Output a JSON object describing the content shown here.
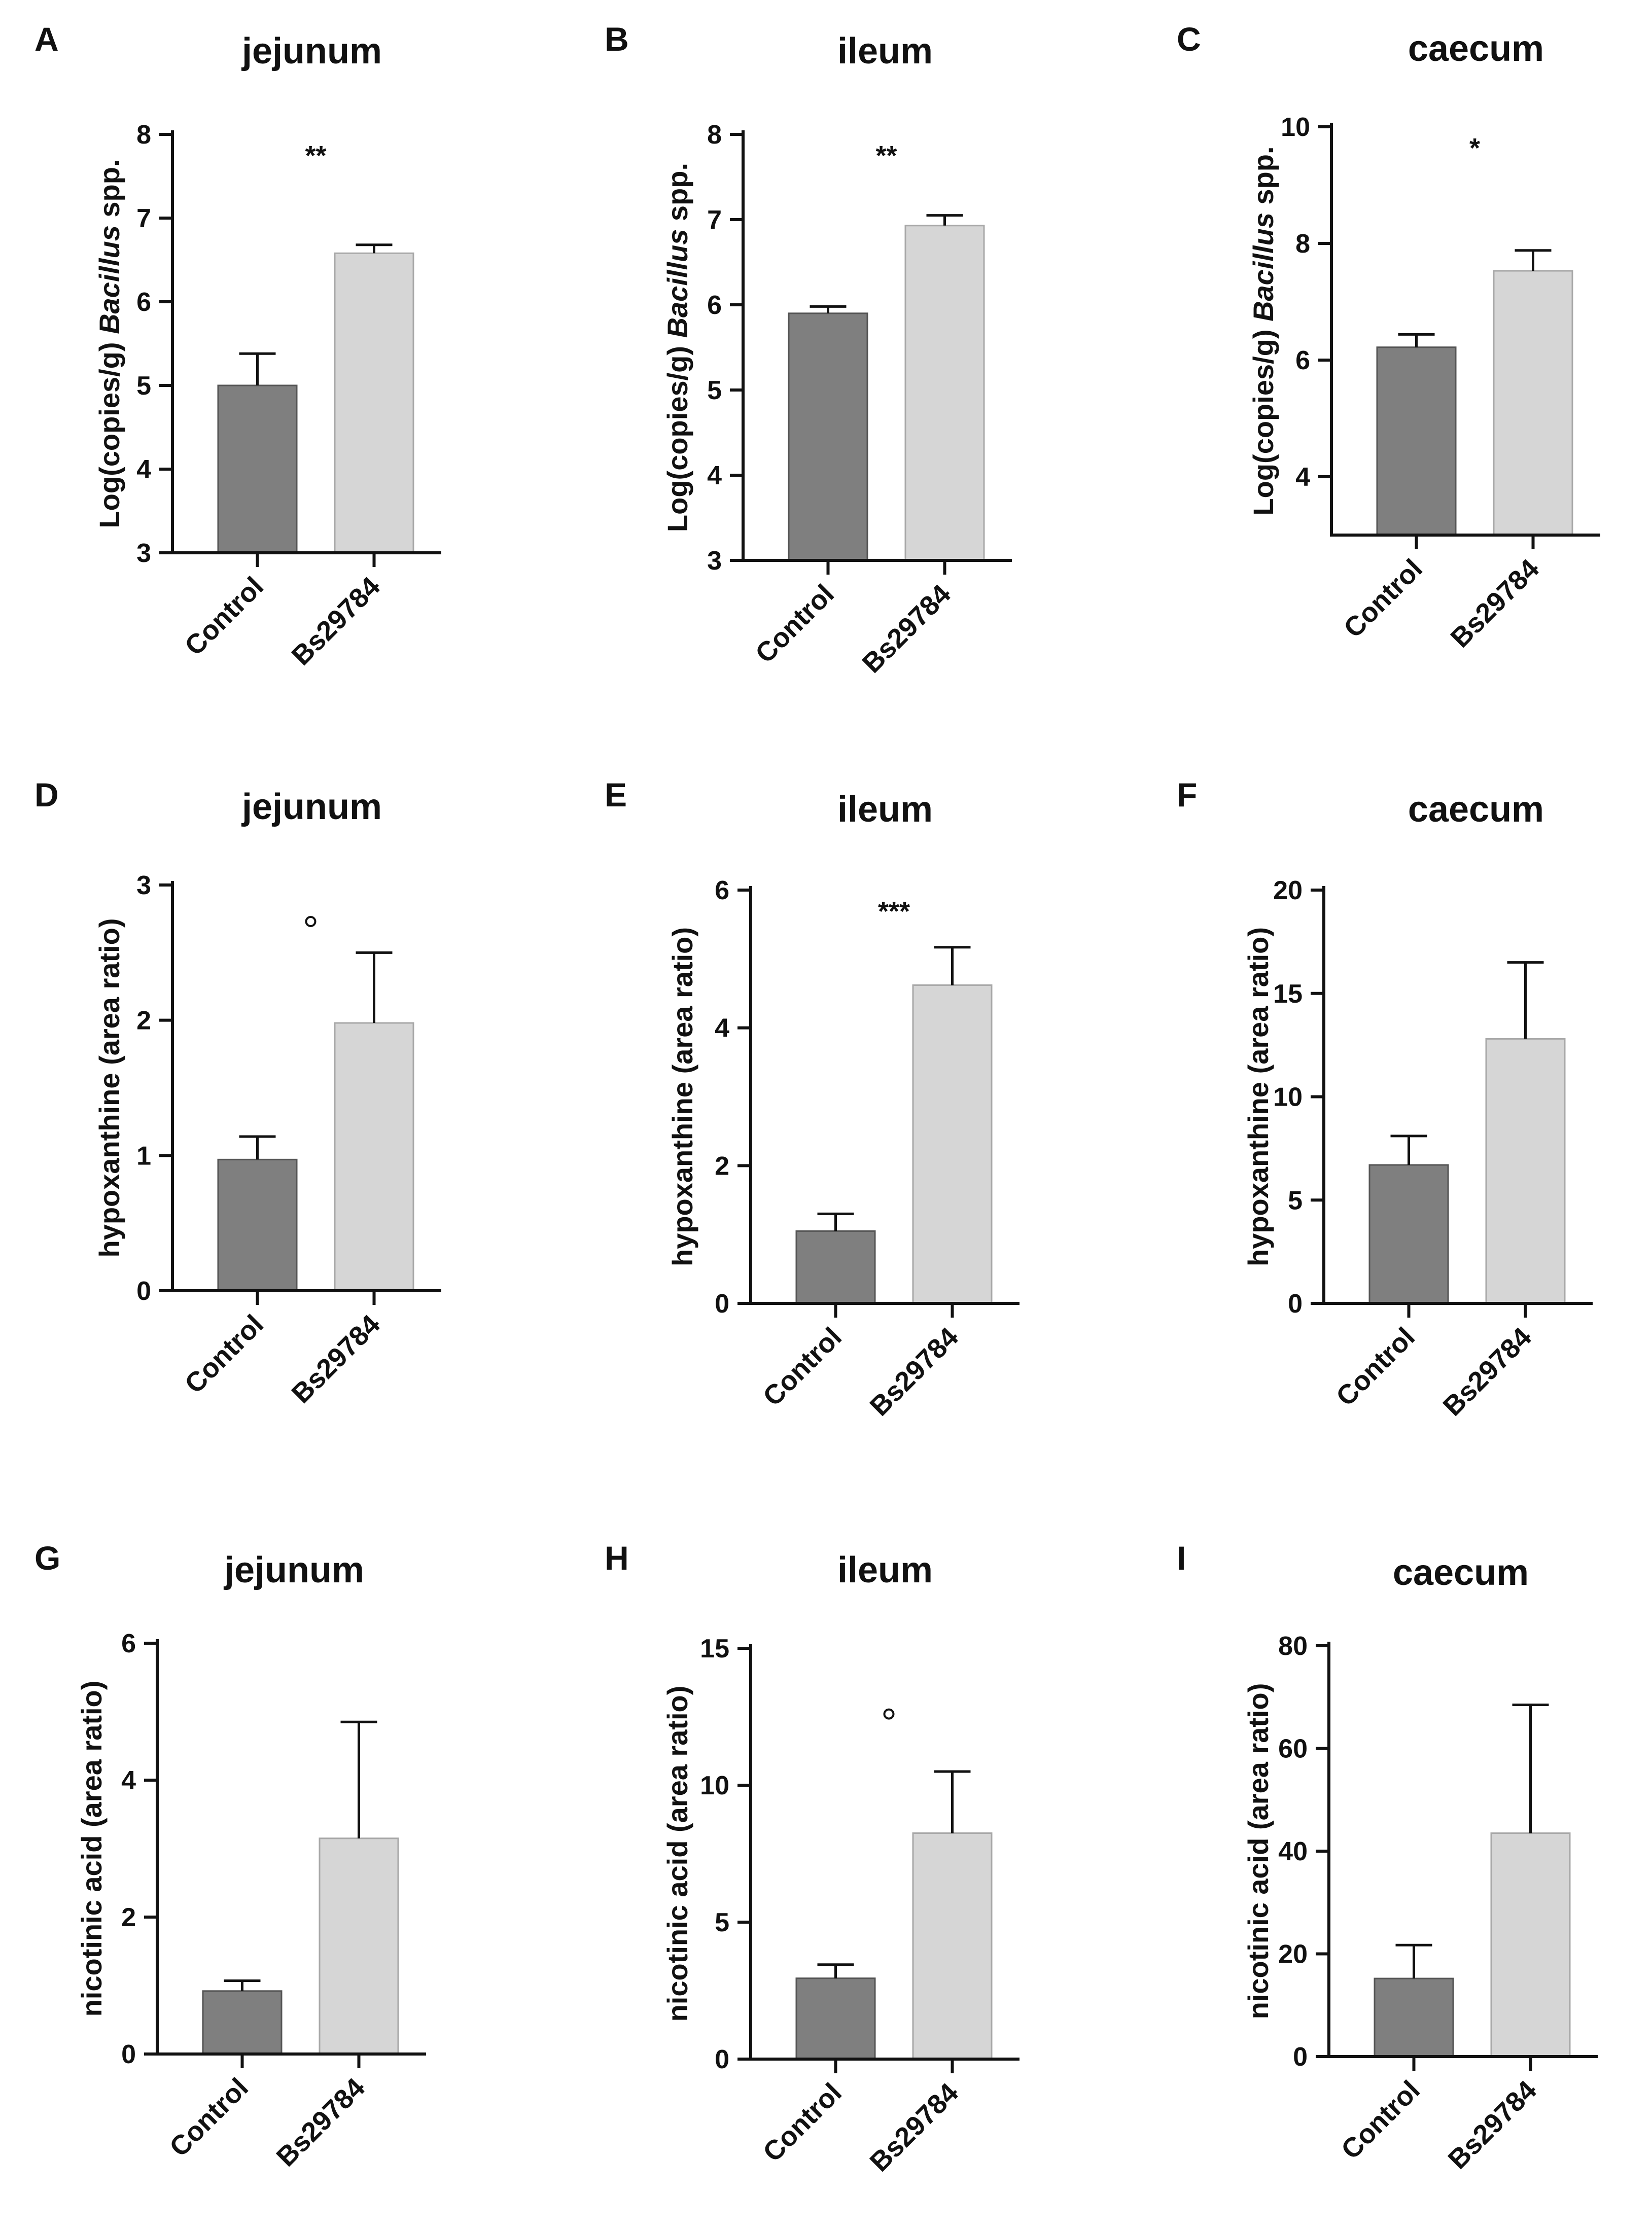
{
  "chart_data": [
    {
      "panel": "A",
      "type": "bar",
      "title": "jejunum",
      "ylabel": "Log(copies/g) Bacillus spp.",
      "ylabel_parts": [
        "Log(copies/g) ",
        "Bacillus",
        " spp."
      ],
      "categories": [
        "Control",
        "Bs29784"
      ],
      "values": [
        5.0,
        6.58
      ],
      "errors": [
        0.38,
        0.1
      ],
      "colors": [
        "#7f7f7f",
        "#d6d6d6"
      ],
      "ylim": [
        3,
        8
      ],
      "yticks": [
        3,
        4,
        5,
        6,
        7,
        8
      ],
      "ytick_labels": [
        "3",
        "4",
        "5",
        "6",
        "7",
        "8"
      ],
      "significance": "**",
      "outliers": []
    },
    {
      "panel": "B",
      "type": "bar",
      "title": "ileum",
      "ylabel": "Log(copies/g) Bacillus spp.",
      "ylabel_parts": [
        "Log(copies/g) ",
        "Bacillus",
        " spp."
      ],
      "categories": [
        "Control",
        "Bs29784"
      ],
      "values": [
        5.9,
        6.93
      ],
      "errors": [
        0.08,
        0.12
      ],
      "colors": [
        "#7f7f7f",
        "#d6d6d6"
      ],
      "ylim": [
        3,
        8
      ],
      "yticks": [
        3,
        4,
        5,
        6,
        7,
        8
      ],
      "ytick_labels": [
        "3",
        "4",
        "5",
        "6",
        "7",
        "8"
      ],
      "significance": "**",
      "outliers": []
    },
    {
      "panel": "C",
      "type": "bar",
      "title": "caecum",
      "ylabel": "Log(copies/g) Bacillus spp.",
      "ylabel_parts": [
        "Log(copies/g) ",
        "Bacillus",
        " spp."
      ],
      "categories": [
        "Control",
        "Bs29784"
      ],
      "values": [
        6.22,
        7.53
      ],
      "errors": [
        0.22,
        0.35
      ],
      "colors": [
        "#7f7f7f",
        "#d6d6d6"
      ],
      "ylim": [
        3,
        10
      ],
      "yticks": [
        4,
        6,
        8,
        10
      ],
      "ytick_labels": [
        "4",
        "6",
        "8",
        "10"
      ],
      "significance": "*",
      "outliers": []
    },
    {
      "panel": "D",
      "type": "bar",
      "title": "jejunum",
      "ylabel": "hypoxanthine (area ratio)",
      "ylabel_parts": [
        "hypoxanthine (area ratio)"
      ],
      "categories": [
        "Control",
        "Bs29784"
      ],
      "values": [
        0.97,
        1.98
      ],
      "errors": [
        0.17,
        0.52
      ],
      "colors": [
        "#7f7f7f",
        "#d6d6d6"
      ],
      "ylim": [
        0,
        3
      ],
      "yticks": [
        0,
        1,
        2,
        3
      ],
      "ytick_labels": [
        "0",
        "1",
        "2",
        "3"
      ],
      "significance": "",
      "outliers": [
        2.73
      ]
    },
    {
      "panel": "E",
      "type": "bar",
      "title": "ileum",
      "ylabel": "hypoxanthine (area ratio)",
      "ylabel_parts": [
        "hypoxanthine (area ratio)"
      ],
      "categories": [
        "Control",
        "Bs29784"
      ],
      "values": [
        1.05,
        4.62
      ],
      "errors": [
        0.25,
        0.55
      ],
      "colors": [
        "#7f7f7f",
        "#d6d6d6"
      ],
      "ylim": [
        0,
        6
      ],
      "yticks": [
        0,
        2,
        4,
        6
      ],
      "ytick_labels": [
        "0",
        "2",
        "4",
        "6"
      ],
      "significance": "***",
      "outliers": []
    },
    {
      "panel": "F",
      "type": "bar",
      "title": "caecum",
      "ylabel": "hypoxanthine (area ratio)",
      "ylabel_parts": [
        "hypoxanthine (area ratio)"
      ],
      "categories": [
        "Control",
        "Bs29784"
      ],
      "values": [
        6.7,
        12.8
      ],
      "errors": [
        1.4,
        3.7
      ],
      "colors": [
        "#7f7f7f",
        "#d6d6d6"
      ],
      "ylim": [
        0,
        20
      ],
      "yticks": [
        0,
        5,
        10,
        15,
        20
      ],
      "ytick_labels": [
        "0",
        "5",
        "10",
        "15",
        "20"
      ],
      "significance": "",
      "outliers": []
    },
    {
      "panel": "G",
      "type": "bar",
      "title": "jejunum",
      "ylabel": "nicotinic acid (area ratio)",
      "ylabel_parts": [
        "nicotinic acid (area ratio)"
      ],
      "categories": [
        "Control",
        "Bs29784"
      ],
      "values": [
        0.92,
        3.15
      ],
      "errors": [
        0.15,
        1.7
      ],
      "colors": [
        "#7f7f7f",
        "#d6d6d6"
      ],
      "ylim": [
        0,
        6
      ],
      "yticks": [
        0,
        2,
        4,
        6
      ],
      "ytick_labels": [
        "0",
        "2",
        "4",
        "6"
      ],
      "significance": "",
      "outliers": []
    },
    {
      "panel": "H",
      "type": "bar",
      "title": "ileum",
      "ylabel": "nicotinic acid (area ratio)",
      "ylabel_parts": [
        "nicotinic acid (area ratio)"
      ],
      "categories": [
        "Control",
        "Bs29784"
      ],
      "values": [
        2.95,
        8.25
      ],
      "errors": [
        0.5,
        2.25
      ],
      "colors": [
        "#7f7f7f",
        "#d6d6d6"
      ],
      "ylim": [
        0,
        15
      ],
      "yticks": [
        0,
        5,
        10,
        15
      ],
      "ytick_labels": [
        "0",
        "5",
        "10",
        "15"
      ],
      "significance": "",
      "outliers": [
        12.6
      ]
    },
    {
      "panel": "I",
      "type": "bar",
      "title": "caecum",
      "ylabel": "nicotinic acid (area ratio)",
      "ylabel_parts": [
        "nicotinic acid (area ratio)"
      ],
      "categories": [
        "Control",
        "Bs29784"
      ],
      "values": [
        15.2,
        43.5
      ],
      "errors": [
        6.5,
        25.0
      ],
      "colors": [
        "#7f7f7f",
        "#d6d6d6"
      ],
      "ylim": [
        0,
        80
      ],
      "yticks": [
        0,
        20,
        40,
        60,
        80
      ],
      "ytick_labels": [
        "0",
        "20",
        "40",
        "60",
        "80"
      ],
      "significance": "",
      "outliers": []
    }
  ]
}
